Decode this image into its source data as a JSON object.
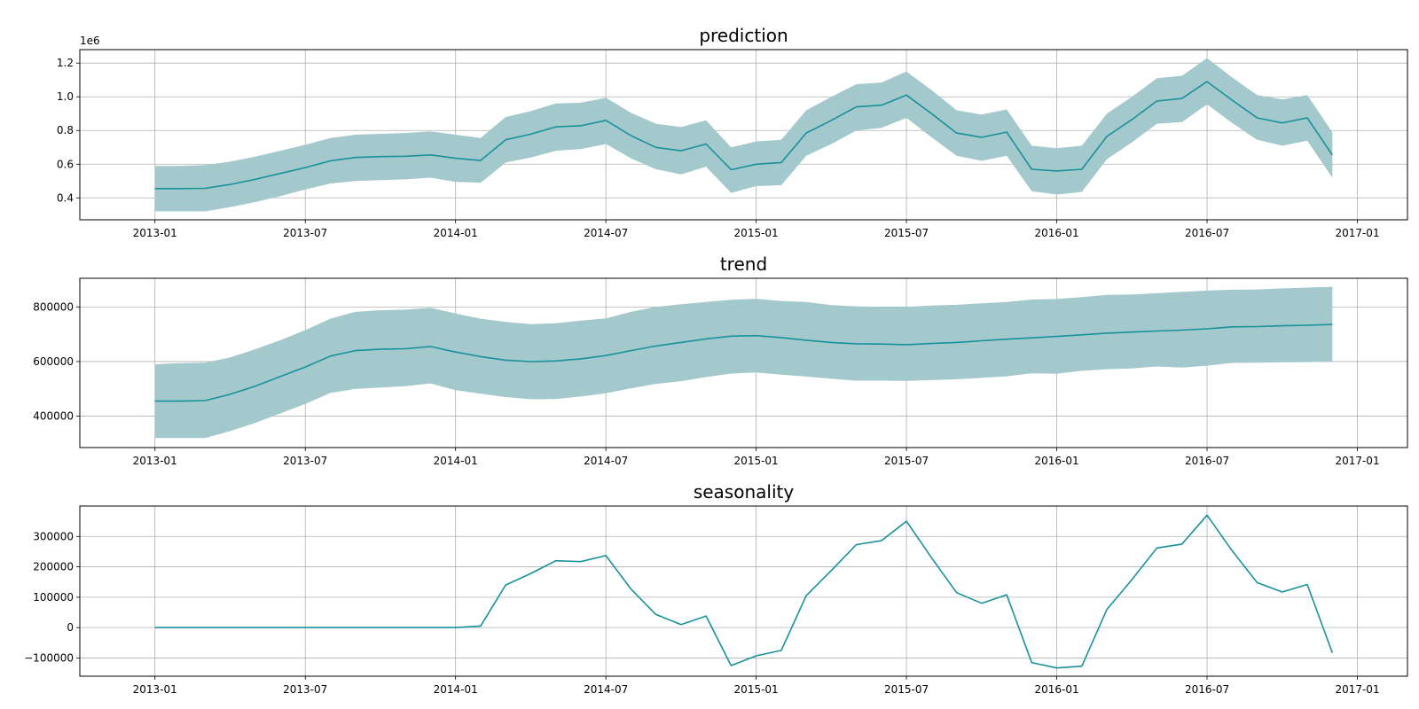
{
  "chart_data": [
    {
      "type": "line",
      "title": "prediction",
      "y_offset_label": "1e6",
      "ylim": [
        0.27,
        1.28
      ],
      "yticks": [
        0.4,
        0.6,
        0.8,
        1.0,
        1.2
      ],
      "ytick_labels": [
        "0.4",
        "0.6",
        "0.8",
        "1.0",
        "1.2"
      ],
      "grid": true,
      "has_band": true,
      "series": [
        {
          "values": [
            0.455,
            0.455,
            0.457,
            0.48,
            0.51,
            0.545,
            0.58,
            0.62,
            0.64,
            0.645,
            0.647,
            0.655,
            0.635,
            0.622,
            0.745,
            0.778,
            0.822,
            0.828,
            0.86,
            0.77,
            0.7,
            0.68,
            0.72,
            0.567,
            0.6,
            0.61,
            0.785,
            0.86,
            0.94,
            0.95,
            1.01,
            0.9,
            0.785,
            0.76,
            0.79,
            0.57,
            0.56,
            0.57,
            0.765,
            0.865,
            0.975,
            0.99,
            1.09,
            0.98,
            0.875,
            0.845,
            0.875,
            0.655
          ],
          "lower": [
            0.32,
            0.32,
            0.32,
            0.345,
            0.375,
            0.41,
            0.45,
            0.485,
            0.5,
            0.505,
            0.51,
            0.52,
            0.495,
            0.49,
            0.61,
            0.64,
            0.68,
            0.69,
            0.72,
            0.635,
            0.57,
            0.54,
            0.585,
            0.43,
            0.47,
            0.475,
            0.65,
            0.72,
            0.8,
            0.815,
            0.875,
            0.76,
            0.65,
            0.62,
            0.65,
            0.44,
            0.42,
            0.435,
            0.63,
            0.73,
            0.84,
            0.85,
            0.955,
            0.845,
            0.745,
            0.71,
            0.74,
            0.52
          ],
          "upper": [
            0.59,
            0.59,
            0.595,
            0.615,
            0.645,
            0.68,
            0.715,
            0.755,
            0.775,
            0.78,
            0.785,
            0.795,
            0.775,
            0.755,
            0.88,
            0.915,
            0.96,
            0.965,
            0.995,
            0.905,
            0.84,
            0.82,
            0.86,
            0.7,
            0.735,
            0.745,
            0.92,
            1.0,
            1.075,
            1.085,
            1.15,
            1.04,
            0.92,
            0.895,
            0.925,
            0.71,
            0.695,
            0.71,
            0.9,
            1.0,
            1.11,
            1.125,
            1.23,
            1.115,
            1.01,
            0.985,
            1.01,
            0.79
          ]
        }
      ]
    },
    {
      "type": "line",
      "title": "trend",
      "ylim": [
        285000,
        905000
      ],
      "yticks": [
        400000,
        600000,
        800000
      ],
      "ytick_labels": [
        "400000",
        "600000",
        "800000"
      ],
      "grid": true,
      "has_band": true,
      "series": [
        {
          "values": [
            455000,
            455000,
            457000,
            480000,
            510000,
            545000,
            580000,
            620000,
            640000,
            645000,
            647000,
            655000,
            635000,
            618000,
            605000,
            600000,
            602000,
            610000,
            622000,
            640000,
            657000,
            670000,
            683000,
            693000,
            695000,
            688000,
            678000,
            670000,
            665000,
            664000,
            662000,
            666000,
            670000,
            676000,
            682000,
            687000,
            692000,
            698000,
            704000,
            708000,
            712000,
            715000,
            720000,
            727000,
            728000,
            731000,
            733000,
            736000
          ],
          "lower": [
            320000,
            320000,
            320000,
            345000,
            375000,
            410000,
            445000,
            485000,
            500000,
            505000,
            510000,
            520000,
            495000,
            482000,
            470000,
            462000,
            463000,
            472000,
            484000,
            502000,
            518000,
            528000,
            543000,
            556000,
            560000,
            552000,
            545000,
            537000,
            530000,
            530000,
            529000,
            532000,
            535000,
            540000,
            546000,
            557000,
            555000,
            566000,
            572000,
            575000,
            582000,
            578000,
            585000,
            595000,
            596000,
            597000,
            598000,
            600000
          ],
          "upper": [
            590000,
            594000,
            596000,
            615000,
            645000,
            678000,
            715000,
            757000,
            782000,
            788000,
            790000,
            797000,
            776000,
            757000,
            745000,
            737000,
            740000,
            750000,
            758000,
            782000,
            800000,
            810000,
            818000,
            826000,
            830000,
            822000,
            818000,
            807000,
            802000,
            800000,
            800000,
            805000,
            808000,
            813000,
            818000,
            827000,
            829000,
            836000,
            844000,
            846000,
            850000,
            855000,
            860000,
            863000,
            864000,
            868000,
            871000,
            874000
          ]
        }
      ]
    },
    {
      "type": "line",
      "title": "seasonality",
      "ylim": [
        -160000,
        400000
      ],
      "yticks": [
        -100000,
        0,
        100000,
        200000,
        300000
      ],
      "ytick_labels": [
        "−100000",
        "0",
        "100000",
        "200000",
        "300000"
      ],
      "grid": true,
      "has_band": false,
      "series": [
        {
          "values": [
            0,
            0,
            0,
            0,
            0,
            0,
            0,
            0,
            0,
            0,
            0,
            0,
            0,
            5000,
            140000,
            178000,
            220000,
            217000,
            237000,
            127000,
            43000,
            10000,
            38000,
            -125000,
            -93000,
            -75000,
            105000,
            188000,
            273000,
            286000,
            350000,
            230000,
            115000,
            80000,
            108000,
            -115000,
            -133000,
            -127000,
            60000,
            158000,
            262000,
            275000,
            370000,
            253000,
            148000,
            117000,
            142000,
            -83000
          ]
        }
      ]
    }
  ],
  "x": [
    "2013-01",
    "2013-02",
    "2013-03",
    "2013-04",
    "2013-05",
    "2013-06",
    "2013-07",
    "2013-08",
    "2013-09",
    "2013-10",
    "2013-11",
    "2013-12",
    "2014-01",
    "2014-02",
    "2014-03",
    "2014-04",
    "2014-05",
    "2014-06",
    "2014-07",
    "2014-08",
    "2014-09",
    "2014-10",
    "2014-11",
    "2014-12",
    "2015-01",
    "2015-02",
    "2015-03",
    "2015-04",
    "2015-05",
    "2015-06",
    "2015-07",
    "2015-08",
    "2015-09",
    "2015-10",
    "2015-11",
    "2015-12",
    "2016-01",
    "2016-02",
    "2016-03",
    "2016-04",
    "2016-05",
    "2016-06",
    "2016-07",
    "2016-08",
    "2016-09",
    "2016-10",
    "2016-11",
    "2016-12"
  ],
  "x_range": [
    "2012-10",
    "2017-03"
  ],
  "xtick_labels": [
    "2013-01",
    "2013-07",
    "2014-01",
    "2014-07",
    "2015-01",
    "2015-07",
    "2016-01",
    "2016-07",
    "2017-01"
  ],
  "colors": {
    "line": "#17919a",
    "band": "#a3c9cc",
    "grid": "#b0b0b0",
    "axis": "#000000"
  }
}
